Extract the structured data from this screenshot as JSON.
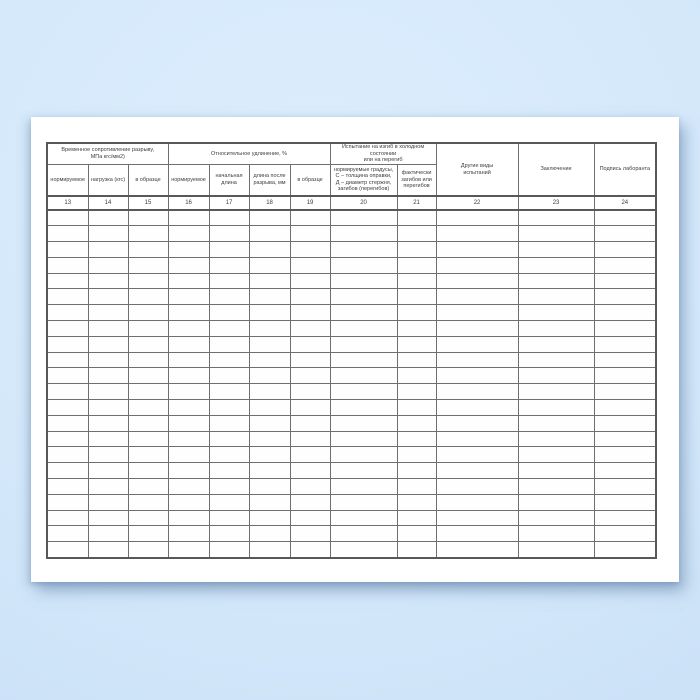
{
  "colors": {
    "background": "#d4e8fa",
    "paper": "#ffffff",
    "table_border": "#6f6f6f",
    "text": "#3d3d3d"
  },
  "table": {
    "group_headers": [
      {
        "label": "Временное сопротивление разрыву,\nМПа кгс/мм2)",
        "colspan": 3
      },
      {
        "label": "Относительное удлинение, %",
        "colspan": 4
      },
      {
        "label": "Испытание на изгиб в холодном состоянии\nили на перегиб",
        "colspan": 2
      }
    ],
    "span_headers": [
      "Другие виды\nиспытаний",
      "Заключение",
      "Подпись лаборанта"
    ],
    "sub_headers": [
      "нормируемое",
      "нагрузка (кгс)",
      "в образце",
      "нормируемое",
      "начальная\nдлина",
      "длина после\nразрыва, мм",
      "в образце",
      "нормируемые градусы,\nС – толщина оправки,\nД – диаметр стержня,\nзагибов (перегибов)",
      "фактически\nзагибов или\nперегибов"
    ],
    "column_numbers": [
      "13",
      "14",
      "15",
      "16",
      "17",
      "18",
      "19",
      "20",
      "21",
      "22",
      "23",
      "24"
    ],
    "data_row_count": 22
  }
}
